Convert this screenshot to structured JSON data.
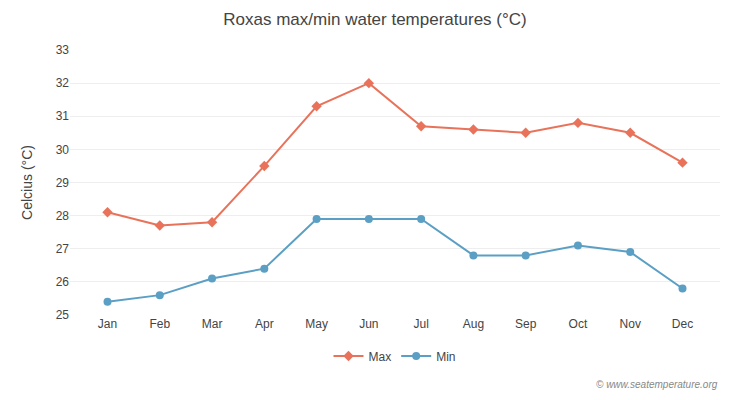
{
  "chart_data": {
    "type": "line",
    "title": "Roxas max/min water temperatures (°C)",
    "ylabel": "Celcius (°C)",
    "categories": [
      "Jan",
      "Feb",
      "Mar",
      "Apr",
      "May",
      "Jun",
      "Jul",
      "Aug",
      "Sep",
      "Oct",
      "Nov",
      "Dec"
    ],
    "series": [
      {
        "name": "Max",
        "color": "#e8735a",
        "marker": "diamond",
        "values": [
          28.1,
          27.7,
          27.8,
          29.5,
          31.3,
          32.0,
          30.7,
          30.6,
          30.5,
          30.8,
          30.5,
          29.6
        ]
      },
      {
        "name": "Min",
        "color": "#5b9fc4",
        "marker": "circle",
        "values": [
          25.4,
          25.6,
          26.1,
          26.4,
          27.9,
          27.9,
          27.9,
          26.8,
          26.8,
          27.1,
          26.9,
          25.8
        ]
      }
    ],
    "ylim": [
      25,
      33
    ],
    "yticks": [
      25,
      26,
      27,
      28,
      29,
      30,
      31,
      32,
      33
    ],
    "grid": true,
    "legend": "bottom",
    "annotations": [
      "© www.seatemperature.org"
    ]
  }
}
